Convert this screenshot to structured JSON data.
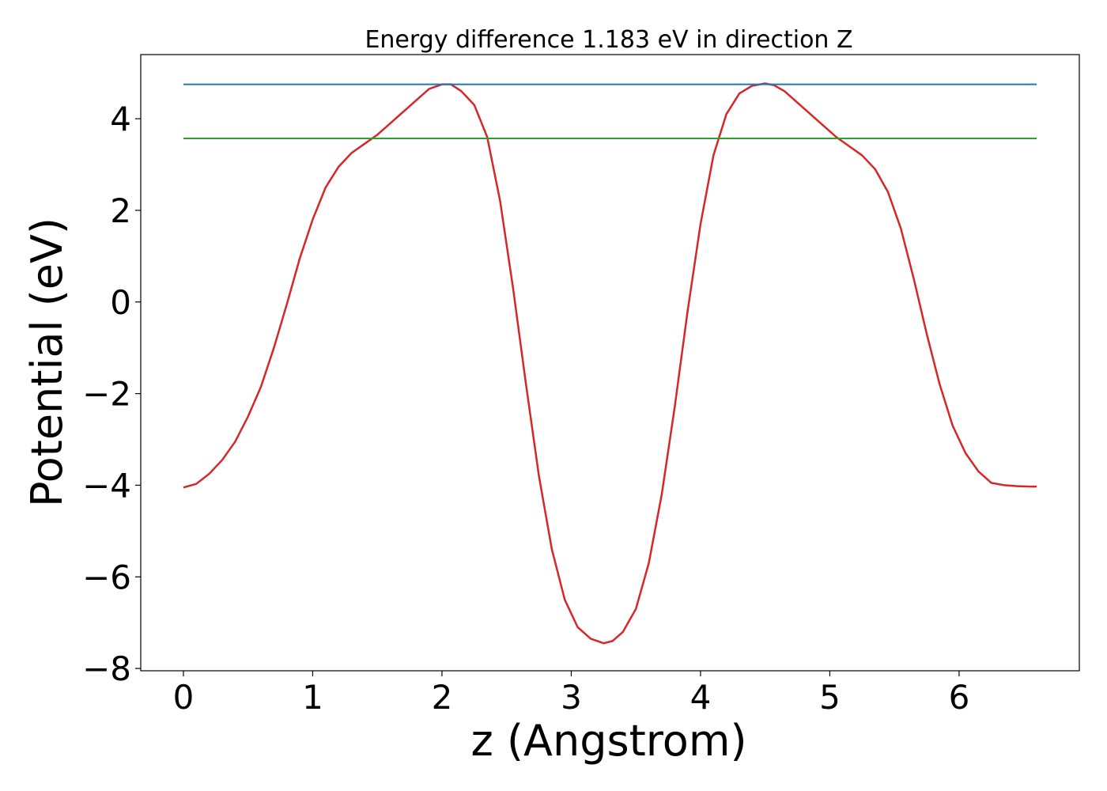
{
  "chart_data": {
    "type": "line",
    "title": "Energy difference 1.183 eV in direction Z",
    "xlabel": "z (Angstrom)",
    "ylabel": "Potential (eV)",
    "xlim": [
      -0.33,
      6.93
    ],
    "ylim": [
      -8.05,
      5.4
    ],
    "xticks": [
      0,
      1,
      2,
      3,
      4,
      5,
      6
    ],
    "yticks": [
      -8,
      -6,
      -4,
      -2,
      0,
      2,
      4
    ],
    "xtick_labels": [
      "0",
      "1",
      "2",
      "3",
      "4",
      "5",
      "6"
    ],
    "ytick_labels": [
      "−8",
      "−6",
      "−4",
      "−2",
      "0",
      "2",
      "4"
    ],
    "grid": false,
    "series": [
      {
        "color": "#d62728",
        "x": [
          0,
          0.1,
          0.2,
          0.3,
          0.4,
          0.5,
          0.6,
          0.7,
          0.8,
          0.9,
          1.0,
          1.1,
          1.2,
          1.3,
          1.4,
          1.5,
          1.6,
          1.7,
          1.8,
          1.9,
          2.0,
          2.07,
          2.15,
          2.25,
          2.35,
          2.45,
          2.55,
          2.65,
          2.75,
          2.85,
          2.95,
          3.05,
          3.15,
          3.25,
          3.32,
          3.4,
          3.5,
          3.6,
          3.7,
          3.8,
          3.9,
          4.0,
          4.1,
          4.2,
          4.3,
          4.4,
          4.5,
          4.57,
          4.65,
          4.75,
          4.85,
          4.95,
          5.05,
          5.15,
          5.25,
          5.35,
          5.45,
          5.55,
          5.65,
          5.75,
          5.85,
          5.95,
          6.05,
          6.15,
          6.25,
          6.35,
          6.45,
          6.55,
          6.6
        ],
        "y": [
          -4.05,
          -3.97,
          -3.75,
          -3.45,
          -3.05,
          -2.5,
          -1.85,
          -1.0,
          -0.05,
          0.95,
          1.8,
          2.5,
          2.95,
          3.25,
          3.45,
          3.65,
          3.9,
          4.15,
          4.4,
          4.65,
          4.75,
          4.75,
          4.6,
          4.3,
          3.6,
          2.2,
          0.3,
          -1.8,
          -3.8,
          -5.4,
          -6.5,
          -7.1,
          -7.35,
          -7.45,
          -7.4,
          -7.2,
          -6.7,
          -5.7,
          -4.2,
          -2.3,
          -0.2,
          1.7,
          3.2,
          4.1,
          4.55,
          4.72,
          4.77,
          4.73,
          4.6,
          4.35,
          4.1,
          3.85,
          3.6,
          3.4,
          3.2,
          2.9,
          2.4,
          1.6,
          0.5,
          -0.7,
          -1.8,
          -2.7,
          -3.3,
          -3.7,
          -3.95,
          -4.0,
          -4.02,
          -4.03,
          -4.03
        ]
      },
      {
        "color": "#1f77b4",
        "x": [
          0,
          6.6
        ],
        "y": [
          4.75,
          4.75
        ]
      },
      {
        "color": "#2ca02c",
        "x": [
          0,
          6.6
        ],
        "y": [
          3.57,
          3.57
        ]
      }
    ]
  }
}
